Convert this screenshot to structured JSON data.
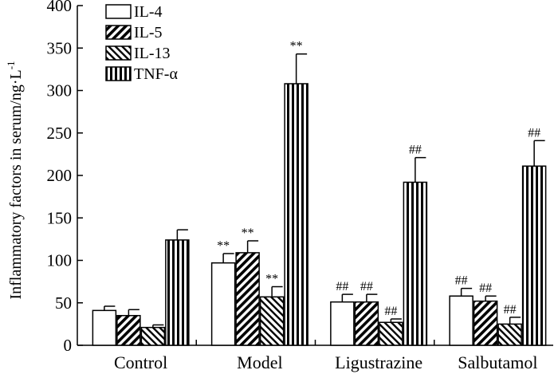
{
  "chart_data": {
    "type": "bar",
    "title": "",
    "xlabel": "",
    "ylabel": "Inflammatory factors in serum/ng·L",
    "ylabel_superscript": "-1",
    "ylim": [
      0,
      400
    ],
    "yticks": [
      0,
      50,
      100,
      150,
      200,
      250,
      300,
      350,
      400
    ],
    "categories": [
      "Control",
      "Model",
      "Ligustrazine",
      "Salbutamol"
    ],
    "series": [
      {
        "name": "IL-4",
        "pattern": "white",
        "values": [
          41,
          97,
          51,
          58
        ],
        "errors": [
          5,
          11,
          9,
          9
        ],
        "annotations": [
          "",
          "**",
          "##",
          "##"
        ]
      },
      {
        "name": "IL-5",
        "pattern": "diag-right",
        "values": [
          35,
          109,
          51,
          52
        ],
        "errors": [
          7,
          14,
          9,
          6
        ],
        "annotations": [
          "",
          "**",
          "##",
          "##"
        ]
      },
      {
        "name": "IL-13",
        "pattern": "diag-left",
        "values": [
          21,
          57,
          27,
          25
        ],
        "errors": [
          3,
          12,
          4,
          8
        ],
        "annotations": [
          "",
          "**",
          "##",
          "##"
        ]
      },
      {
        "name": "TNF-α",
        "pattern": "vertical",
        "values": [
          124,
          308,
          192,
          211
        ],
        "errors": [
          12,
          35,
          29,
          30
        ],
        "annotations": [
          "",
          "**",
          "##",
          "##"
        ]
      }
    ],
    "legend_position": "top-left"
  }
}
